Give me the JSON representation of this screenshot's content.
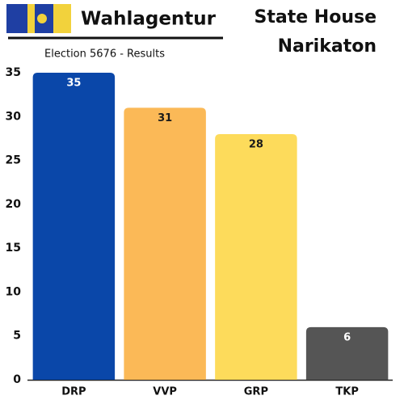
{
  "chart_data": {
    "type": "bar",
    "brand": "Wahlagentur",
    "title_lines": [
      "State House",
      "Narikaton"
    ],
    "subtitle": "Election 5676 - Results",
    "categories": [
      "DRP",
      "VVP",
      "GRP",
      "TKP"
    ],
    "values": [
      35,
      31,
      28,
      6
    ],
    "colors": [
      "#0a47a9",
      "#fbb957",
      "#fddb5b",
      "#555555"
    ],
    "value_label_colors": [
      "#ffffff",
      "#1a1a1a",
      "#1a1a1a",
      "#ffffff"
    ],
    "ylim": [
      0,
      35
    ],
    "yticks": [
      0,
      5,
      10,
      15,
      20,
      25,
      30,
      35
    ],
    "grid": false
  }
}
